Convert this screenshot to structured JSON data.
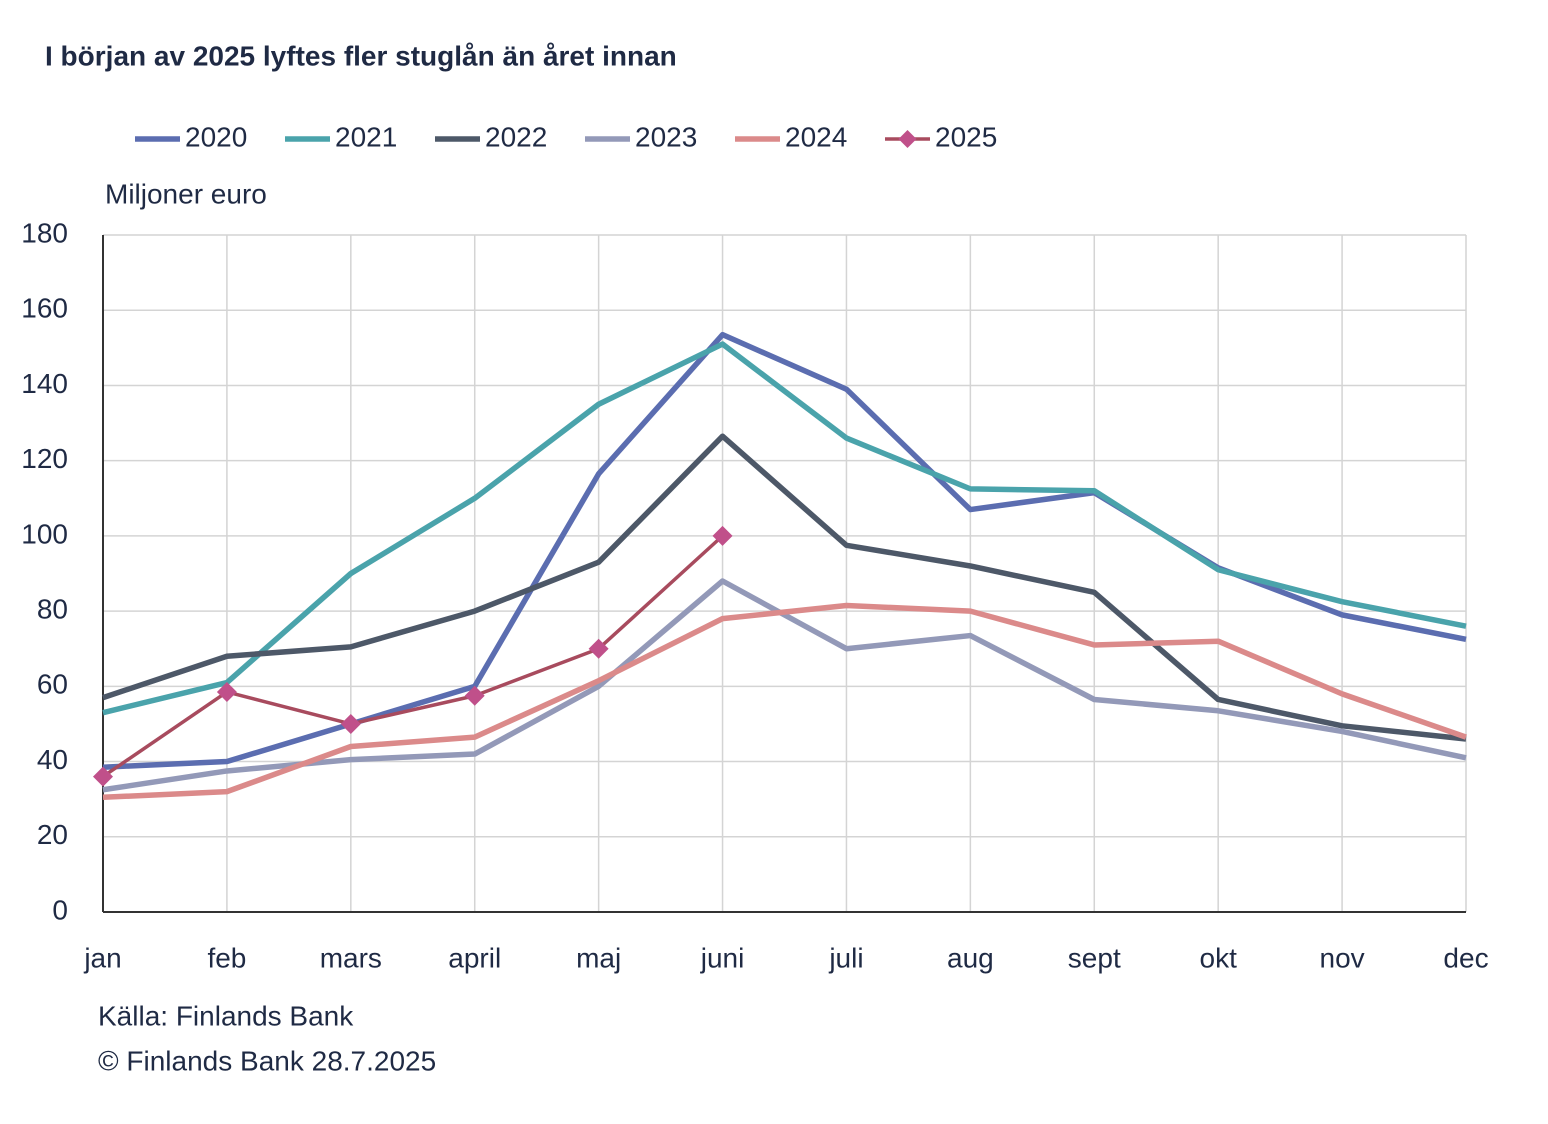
{
  "chart_data": {
    "type": "line",
    "title": "I början av 2025 lyftes fler stuglån än året innan",
    "y_axis_label": "Miljoner euro",
    "source": "Källa: Finlands Bank",
    "copyright": "© Finlands Bank 28.7.2025",
    "categories": [
      "jan",
      "feb",
      "mars",
      "april",
      "maj",
      "juni",
      "juli",
      "aug",
      "sept",
      "okt",
      "nov",
      "dec"
    ],
    "ylim": [
      0,
      180
    ],
    "yticks": [
      0,
      20,
      40,
      60,
      80,
      100,
      120,
      140,
      160,
      180
    ],
    "grid": true,
    "series": [
      {
        "name": "2020",
        "color": "#5b6db0",
        "values": [
          38.5,
          40,
          50,
          60,
          116.5,
          153.5,
          139,
          107,
          111.5,
          91.5,
          79,
          72.5
        ]
      },
      {
        "name": "2021",
        "color": "#4aa3ab",
        "values": [
          53,
          61,
          90,
          110,
          135,
          151,
          126,
          112.5,
          112,
          91,
          82.5,
          76
        ]
      },
      {
        "name": "2022",
        "color": "#4d5868",
        "values": [
          57,
          68,
          70.5,
          80,
          93,
          126.5,
          97.5,
          92,
          85,
          56.5,
          49.5,
          46
        ]
      },
      {
        "name": "2023",
        "color": "#9399b8",
        "values": [
          32.5,
          37.5,
          40.5,
          42,
          60,
          88,
          70,
          73.5,
          56.5,
          53.5,
          48,
          41
        ]
      },
      {
        "name": "2024",
        "color": "#db8a8a",
        "values": [
          30.5,
          32,
          44,
          46.5,
          61.5,
          78,
          81.5,
          80,
          71,
          72,
          58,
          46.5
        ]
      },
      {
        "name": "2025",
        "color": "#a84b5e",
        "marker": "diamond",
        "marker_color": "#c0508a",
        "values": [
          36,
          58.5,
          50,
          57.5,
          70,
          100,
          null,
          null,
          null,
          null,
          null,
          null
        ]
      }
    ]
  }
}
